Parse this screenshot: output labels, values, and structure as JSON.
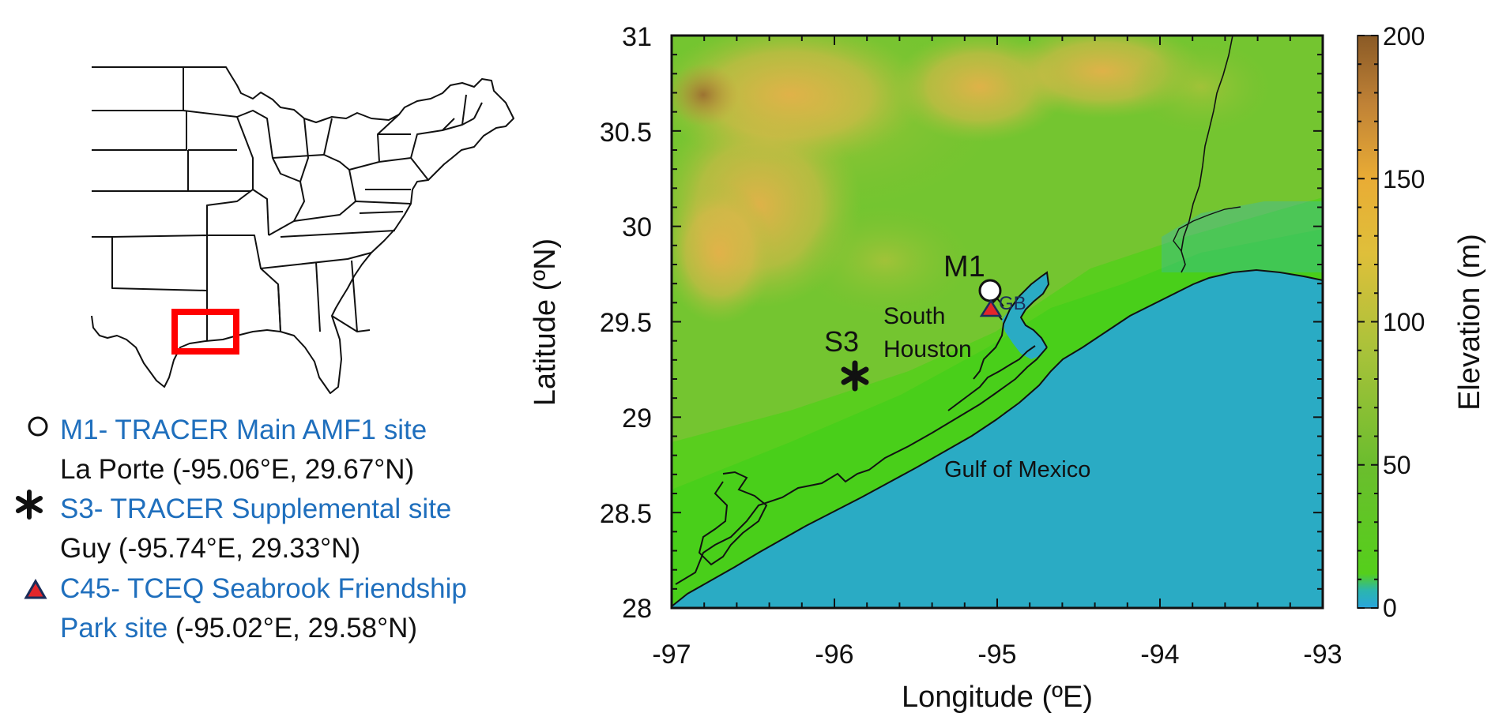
{
  "legend": {
    "items": [
      {
        "marker": "circle",
        "site": "M1- TRACER Main AMF1 site",
        "location": "La Porte (-95.06°E, 29.67°N)"
      },
      {
        "marker": "asterisk",
        "site": "S3- TRACER Supplemental site",
        "location": "Guy (-95.74°E, 29.33°N)"
      },
      {
        "marker": "triangle",
        "site_line1": "C45- TCEQ Seabrook Friendship",
        "site_line2": "Park site",
        "location": " (-95.02°E, 29.58°N)"
      }
    ]
  },
  "map_labels": {
    "m1": "M1",
    "s3": "S3",
    "south": "South",
    "houston": "Houston",
    "gb": "GB",
    "gulf": "Gulf of Mexico"
  },
  "axes": {
    "xlabel": "Longitude (ºE)",
    "ylabel": "Latitude (ºN)",
    "xticks": [
      "-97",
      "-96",
      "-95",
      "-94",
      "-93"
    ],
    "yticks": [
      "31",
      "30.5",
      "30",
      "29.5",
      "29",
      "28.5",
      "28"
    ]
  },
  "colorbar": {
    "label": "Elevation (m)",
    "ticks": [
      "200",
      "150",
      "100",
      "50",
      "0"
    ]
  },
  "chart_data": {
    "type": "heatmap",
    "variable": "Elevation (m)",
    "xlabel": "Longitude (ºE)",
    "ylabel": "Latitude (ºN)",
    "xlim": [
      -97,
      -93
    ],
    "ylim": [
      28,
      31
    ],
    "clim": [
      0,
      200
    ],
    "colormap": [
      "#29a5dc",
      "#2aafc4",
      "#55cf1b",
      "#6bc52a",
      "#8fbd3a",
      "#c2c236",
      "#e8b23c",
      "#c0823a",
      "#8a5a26"
    ],
    "sites": [
      {
        "name": "M1",
        "lon": -95.06,
        "lat": 29.67,
        "marker": "circle"
      },
      {
        "name": "S3",
        "lon": -95.74,
        "lat": 29.33,
        "marker": "asterisk"
      },
      {
        "name": "C45",
        "lon": -95.02,
        "lat": 29.58,
        "marker": "triangle"
      }
    ]
  },
  "colors": {
    "legend_blue": "#1f6fbd",
    "gulf": "#2aabc4",
    "land_low": "#5ccd22",
    "land_high": "#e4b14a",
    "triangle": "#e3262b",
    "inset_box": "#ff0000"
  }
}
